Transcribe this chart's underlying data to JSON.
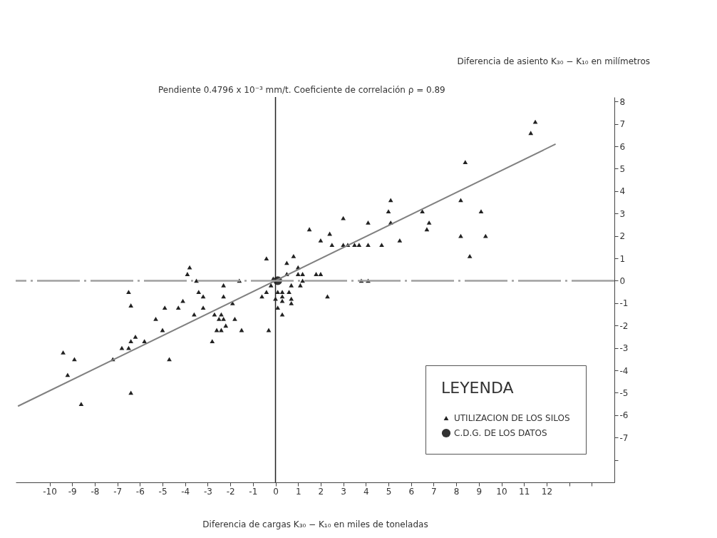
{
  "chart_data": {
    "type": "scatter",
    "xlabel": "Diferencia de cargas K₃₀ − K₁₀ en miles de toneladas",
    "ylabel": "Diferencia de asiento K₃₀ − K₁₀  en milímetros",
    "annotations": [
      "Pendiente 0.4796 x 10⁻³ mm/t.   Coeficiente de correlación  ρ = 0.89"
    ],
    "legend_title": "LEYENDA",
    "legend": "bottom right",
    "grid": false,
    "xlim": [
      -11.5,
      15
    ],
    "ylim": [
      -9,
      8.2
    ],
    "xticks": [
      -10,
      -9,
      -8,
      -7,
      -6,
      -5,
      -4,
      -3,
      -2,
      -1,
      0,
      1,
      2,
      3,
      4,
      5,
      6,
      7,
      8,
      9,
      10,
      11,
      12,
      {
        "value": 13,
        "label": null
      },
      {
        "value": 14,
        "label": null
      }
    ],
    "yticks": [
      {
        "value": -8,
        "label": null
      },
      -7,
      -6,
      -5,
      -4,
      -3,
      -2,
      -1,
      0,
      1,
      2,
      3,
      4,
      5,
      6,
      7,
      8
    ],
    "series": [
      {
        "name": "UTILIZACION DE LOS SILOS",
        "type": "scatter",
        "marker": "triangle",
        "color": "#222222",
        "x": [
          -3.8,
          -3.9,
          -3.5,
          -1.6,
          -6.5,
          -6.4,
          -3.4,
          -3.2,
          -2.3,
          -2.3,
          -1.9,
          -4.9,
          -4.3,
          -4.1,
          -3.2,
          -3.6,
          -5.3,
          -5.0,
          -2.7,
          -2.4,
          -2.5,
          -2.3,
          -2.2,
          -1.8,
          -1.5,
          -2.6,
          -2.4,
          -2.8,
          -6.2,
          -6.4,
          -6.5,
          -6.8,
          -5.8,
          -7.2,
          -4.7,
          -9.4,
          -8.9,
          -9.2,
          -8.6,
          -6.4,
          -0.4,
          0.8,
          0.5,
          1.0,
          0.5,
          1.0,
          1.2,
          1.2,
          1.8,
          2.0,
          -0.1,
          -0.2,
          -0.4,
          -0.6,
          0.7,
          1.1,
          0.1,
          0.3,
          0.6,
          0.0,
          0.3,
          0.7,
          0.3,
          0.7,
          0.1,
          0.3,
          2.3,
          -0.3,
          11.5,
          11.3,
          8.4,
          5.1,
          5.0,
          5.1,
          3.0,
          4.1,
          1.5,
          2.4,
          2.0,
          2.5,
          3.0,
          3.2,
          3.5,
          3.7,
          4.1,
          4.7,
          5.5,
          6.5,
          6.8,
          6.7,
          8.2,
          8.2,
          9.1,
          9.3,
          8.6,
          3.8,
          4.1
        ],
        "values": [
          0.6,
          0.3,
          0.0,
          0.0,
          -0.5,
          -1.1,
          -0.5,
          -0.7,
          -0.2,
          -0.7,
          -1.0,
          -1.2,
          -1.2,
          -0.9,
          -1.2,
          -1.5,
          -1.7,
          -2.2,
          -1.5,
          -1.5,
          -1.7,
          -1.7,
          -2.0,
          -1.7,
          -2.2,
          -2.2,
          -2.2,
          -2.7,
          -2.5,
          -2.7,
          -3.0,
          -3.0,
          -2.7,
          -3.5,
          -3.5,
          -3.2,
          -3.5,
          -4.2,
          -5.5,
          -5.0,
          1.0,
          1.1,
          0.8,
          0.6,
          0.3,
          0.3,
          0.3,
          0.0,
          0.3,
          0.3,
          0.1,
          -0.2,
          -0.5,
          -0.7,
          -0.2,
          -0.2,
          -0.5,
          -0.5,
          -0.5,
          -0.8,
          -0.7,
          -0.8,
          -0.9,
          -1.0,
          -1.2,
          -1.5,
          -0.7,
          -2.2,
          7.1,
          6.6,
          5.3,
          3.6,
          3.1,
          2.6,
          2.8,
          2.6,
          2.3,
          2.1,
          1.8,
          1.6,
          1.6,
          1.6,
          1.6,
          1.6,
          1.6,
          1.6,
          1.8,
          3.1,
          2.6,
          2.3,
          3.6,
          2.0,
          3.1,
          2.0,
          1.1,
          0.0,
          0.0
        ]
      },
      {
        "name": "C.D.G. DE LOS DATOS",
        "type": "scatter",
        "marker": "circle",
        "color": "#333333",
        "x": [
          0.1
        ],
        "values": [
          0.0
        ]
      },
      {
        "type": "line",
        "color": "#808080",
        "x": [
          -11.4,
          12.4
        ],
        "values": [
          -5.6,
          6.1
        ]
      }
    ],
    "ref_lines": [
      {
        "axis": "x",
        "value": 0,
        "color": "#222222"
      },
      {
        "axis": "y",
        "value": 0,
        "color": "#a0a0a0",
        "line_style": "dashed"
      }
    ]
  }
}
